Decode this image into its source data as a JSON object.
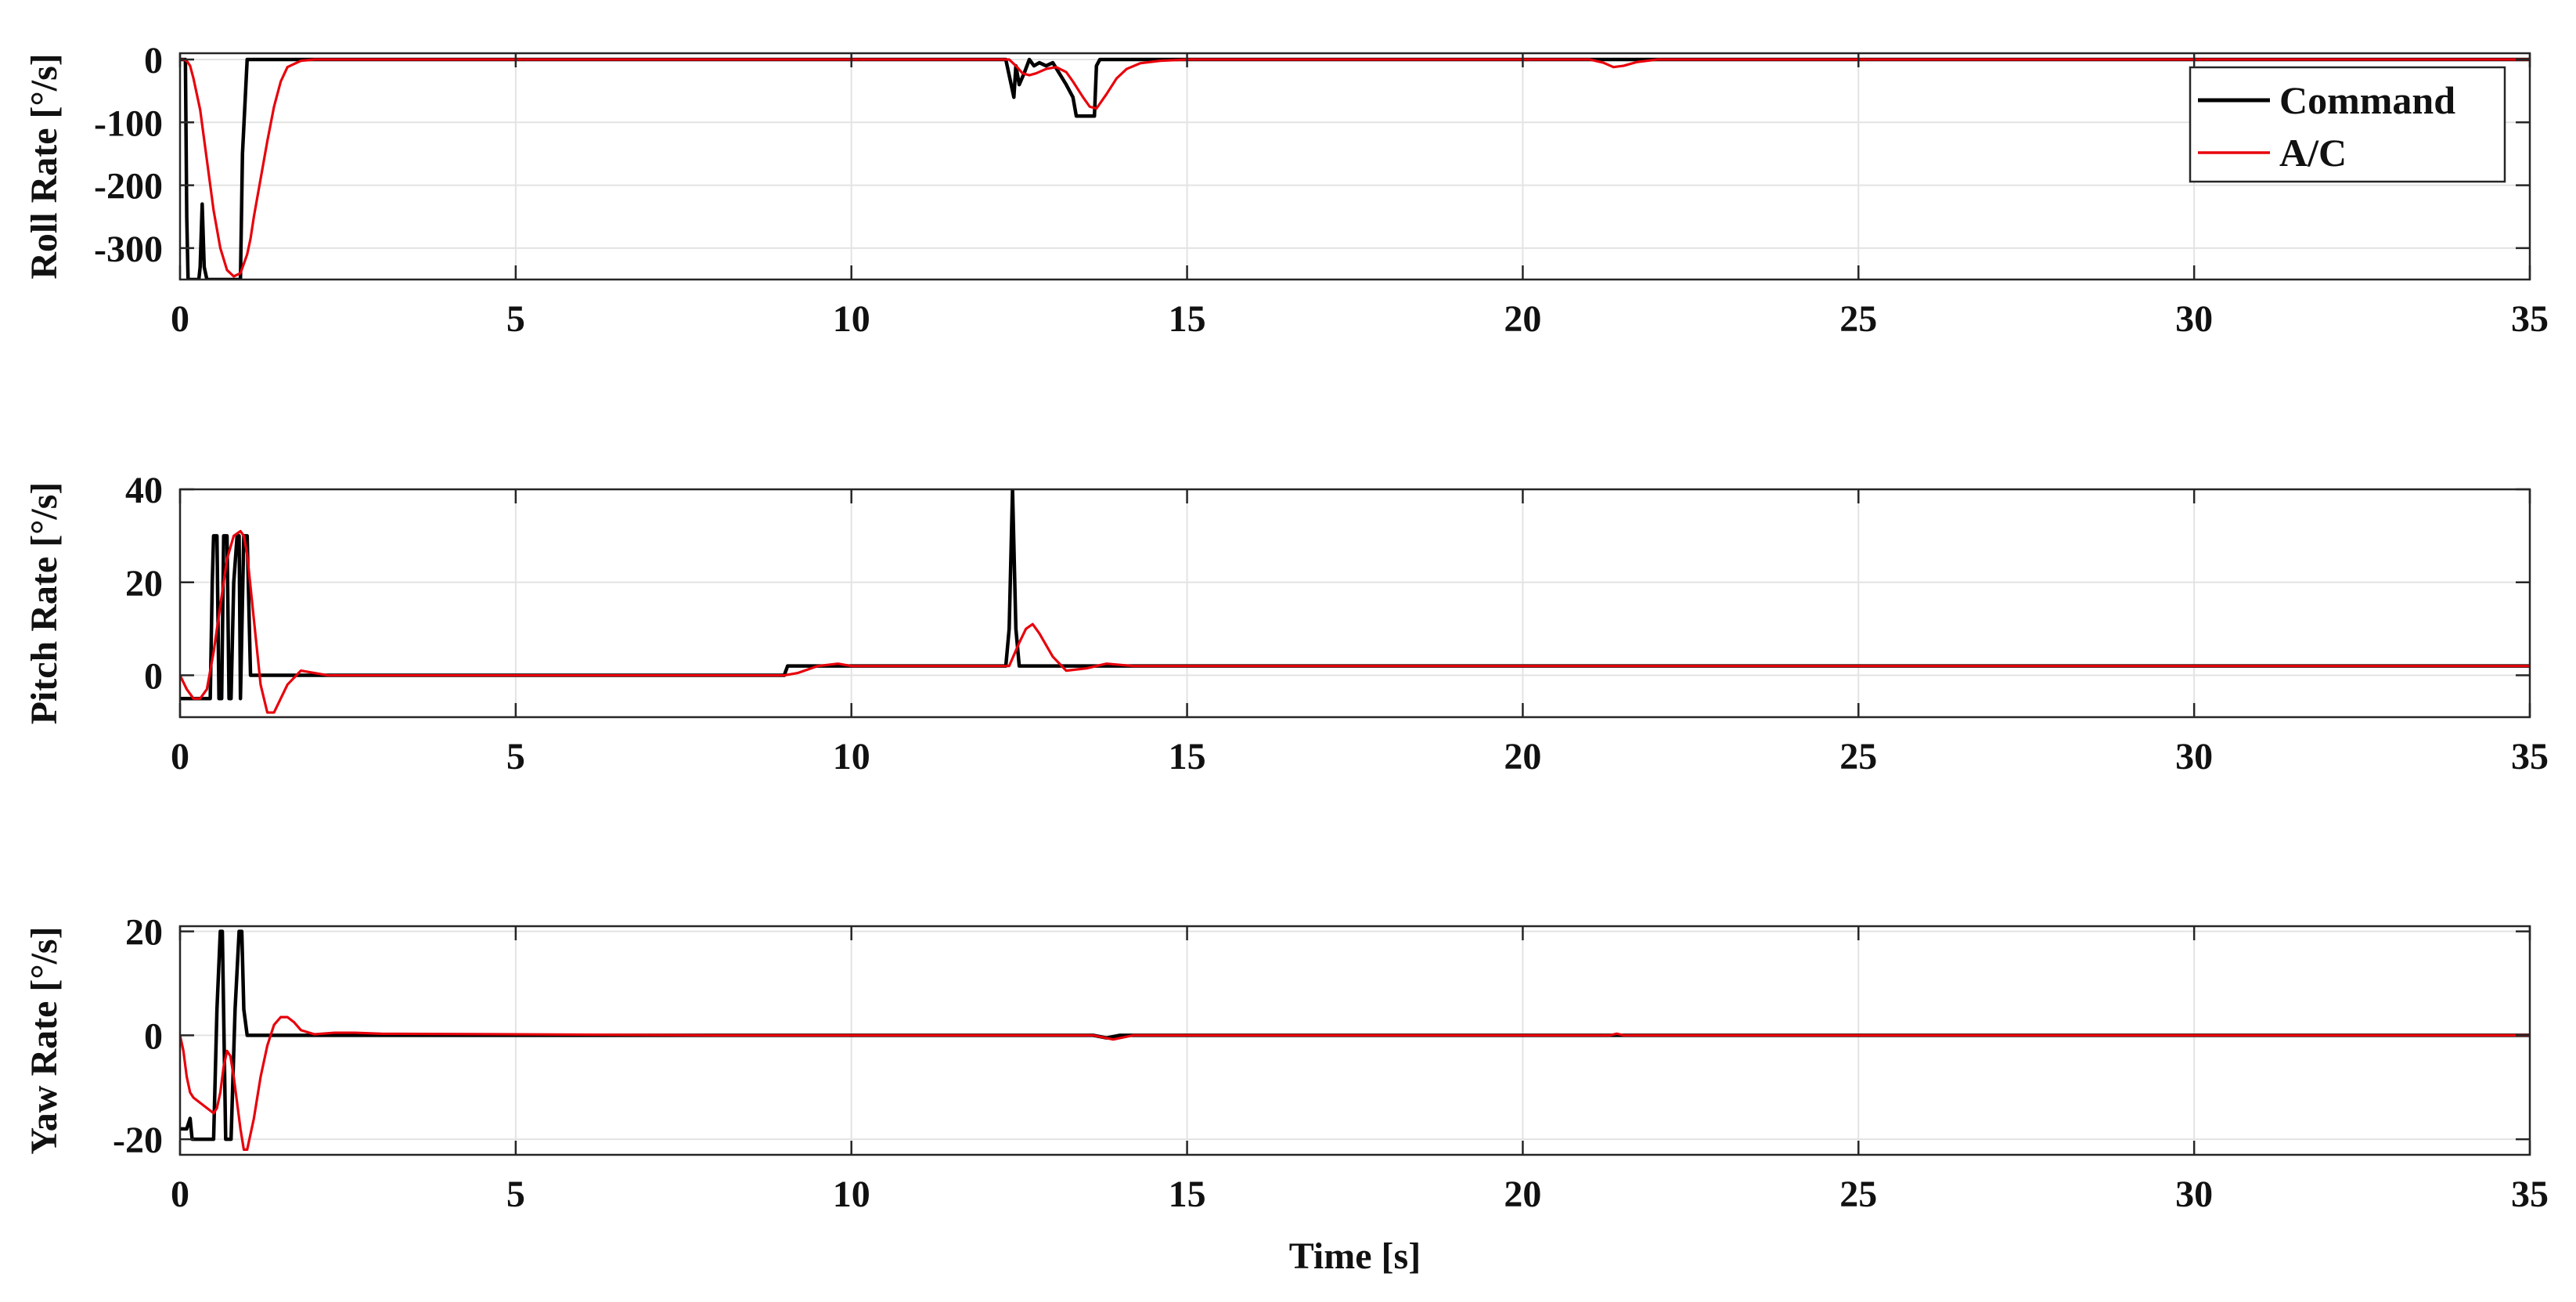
{
  "chart_data": [
    {
      "type": "line",
      "title": "",
      "xlabel": "",
      "ylabel": "Roll Rate [°/s]",
      "xlim": [
        0,
        35
      ],
      "ylim": [
        -350,
        10
      ],
      "xticks": [
        0,
        5,
        10,
        15,
        20,
        25,
        30,
        35
      ],
      "yticks": [
        -300,
        -200,
        -100,
        0
      ],
      "grid": true,
      "legend": {
        "location": "top-right",
        "entries": [
          "Command",
          "A/C"
        ]
      },
      "series": [
        {
          "name": "Command",
          "color": "#000000",
          "x": [
            0,
            0.08,
            0.1,
            0.12,
            0.28,
            0.3,
            0.33,
            0.36,
            0.4,
            0.42,
            0.9,
            0.93,
            1.0,
            12.3,
            12.42,
            12.45,
            12.5,
            12.58,
            12.65,
            12.72,
            12.8,
            12.9,
            13.0,
            13.2,
            13.3,
            13.35,
            13.62,
            13.65,
            13.7,
            35
          ],
          "y": [
            0,
            0,
            -250,
            -350,
            -350,
            -330,
            -230,
            -330,
            -350,
            -350,
            -350,
            -150,
            0,
            0,
            -60,
            -10,
            -40,
            -20,
            0,
            -10,
            -5,
            -10,
            -5,
            -40,
            -60,
            -90,
            -90,
            -10,
            0,
            0
          ]
        },
        {
          "name": "A/C",
          "color": "#e8000b",
          "x": [
            0,
            0.05,
            0.1,
            0.15,
            0.2,
            0.3,
            0.4,
            0.5,
            0.6,
            0.7,
            0.8,
            0.9,
            1.0,
            1.05,
            1.1,
            1.2,
            1.3,
            1.4,
            1.5,
            1.6,
            1.8,
            2.0,
            12.35,
            12.45,
            12.55,
            12.65,
            12.75,
            12.9,
            13.05,
            13.2,
            13.3,
            13.45,
            13.55,
            13.65,
            13.8,
            13.95,
            14.1,
            14.3,
            14.6,
            15.0,
            21.0,
            21.2,
            21.35,
            21.5,
            21.7,
            22.0,
            35
          ],
          "y": [
            0,
            0,
            -2,
            -10,
            -30,
            -80,
            -160,
            -240,
            -300,
            -335,
            -345,
            -340,
            -310,
            -285,
            -250,
            -190,
            -130,
            -75,
            -35,
            -12,
            -2,
            0,
            0,
            -10,
            -22,
            -25,
            -22,
            -15,
            -12,
            -20,
            -35,
            -60,
            -75,
            -78,
            -55,
            -30,
            -15,
            -6,
            -2,
            0,
            0,
            -5,
            -12,
            -10,
            -4,
            0,
            0
          ]
        }
      ]
    },
    {
      "type": "line",
      "title": "",
      "xlabel": "",
      "ylabel": "Pitch Rate [°/s]",
      "xlim": [
        0,
        35
      ],
      "ylim": [
        -9,
        40
      ],
      "xticks": [
        0,
        5,
        10,
        15,
        20,
        25,
        30,
        35
      ],
      "yticks": [
        0,
        20,
        40
      ],
      "grid": true,
      "series": [
        {
          "name": "Command",
          "color": "#000000",
          "x": [
            0,
            0.45,
            0.48,
            0.5,
            0.55,
            0.58,
            0.62,
            0.65,
            0.7,
            0.73,
            0.76,
            0.8,
            0.85,
            0.88,
            0.9,
            0.95,
            1.0,
            1.05,
            9.0,
            9.05,
            12.3,
            12.35,
            12.4,
            12.45,
            12.5,
            35
          ],
          "y": [
            -5,
            -5,
            20,
            30,
            30,
            -5,
            -5,
            30,
            30,
            -5,
            -5,
            20,
            30,
            30,
            -5,
            30,
            30,
            0,
            0,
            2,
            2,
            10,
            40,
            10,
            2,
            2
          ]
        },
        {
          "name": "A/C",
          "color": "#e8000b",
          "x": [
            0,
            0.1,
            0.2,
            0.3,
            0.4,
            0.5,
            0.6,
            0.7,
            0.8,
            0.9,
            0.95,
            1.0,
            1.1,
            1.2,
            1.3,
            1.4,
            1.5,
            1.6,
            1.8,
            2.0,
            2.2,
            9.0,
            9.2,
            9.5,
            9.8,
            10.0,
            12.35,
            12.5,
            12.6,
            12.7,
            12.8,
            13.0,
            13.2,
            13.5,
            13.8,
            14.2,
            15.0,
            35
          ],
          "y": [
            0,
            -3,
            -5,
            -5,
            -3,
            5,
            15,
            25,
            30,
            31,
            30,
            26,
            12,
            -2,
            -8,
            -8,
            -5,
            -2,
            1,
            0.5,
            0,
            0,
            0.5,
            2,
            2.5,
            2,
            2,
            7,
            10,
            11,
            9,
            4,
            1,
            1.5,
            2.5,
            2,
            2,
            2
          ]
        }
      ]
    },
    {
      "type": "line",
      "title": "",
      "xlabel": "Time [s]",
      "ylabel": "Yaw Rate [°/s]",
      "xlim": [
        0,
        35
      ],
      "ylim": [
        -23,
        21
      ],
      "xticks": [
        0,
        5,
        10,
        15,
        20,
        25,
        30,
        35
      ],
      "yticks": [
        -20,
        0,
        20
      ],
      "grid": true,
      "series": [
        {
          "name": "Command",
          "color": "#000000",
          "x": [
            0,
            0.1,
            0.15,
            0.18,
            0.22,
            0.5,
            0.55,
            0.6,
            0.63,
            0.68,
            0.72,
            0.76,
            0.82,
            0.88,
            0.92,
            0.95,
            1.0,
            13.6,
            13.8,
            14.0,
            35
          ],
          "y": [
            -18,
            -18,
            -16,
            -20,
            -20,
            -20,
            5,
            20,
            20,
            -20,
            -20,
            -20,
            5,
            20,
            20,
            5,
            0,
            0,
            -0.5,
            0,
            0
          ]
        },
        {
          "name": "A/C",
          "color": "#e8000b",
          "x": [
            0,
            0.05,
            0.1,
            0.15,
            0.2,
            0.3,
            0.4,
            0.5,
            0.55,
            0.6,
            0.65,
            0.7,
            0.75,
            0.8,
            0.85,
            0.9,
            0.95,
            1.0,
            1.1,
            1.2,
            1.3,
            1.4,
            1.5,
            1.6,
            1.7,
            1.8,
            2.0,
            2.3,
            2.6,
            3.0,
            5.0,
            8.0,
            13.6,
            13.9,
            14.2,
            21.3,
            21.4,
            21.5,
            35
          ],
          "y": [
            0,
            -3,
            -8,
            -11,
            -12,
            -13,
            -14,
            -15,
            -14,
            -11,
            -6,
            -3,
            -4,
            -8,
            -13,
            -18,
            -22,
            -22,
            -16,
            -8,
            -2,
            2,
            3.5,
            3.5,
            2.5,
            1,
            0.2,
            0.5,
            0.5,
            0.3,
            0.2,
            0,
            0,
            -0.8,
            0,
            0,
            0.3,
            0,
            0
          ]
        }
      ]
    }
  ]
}
